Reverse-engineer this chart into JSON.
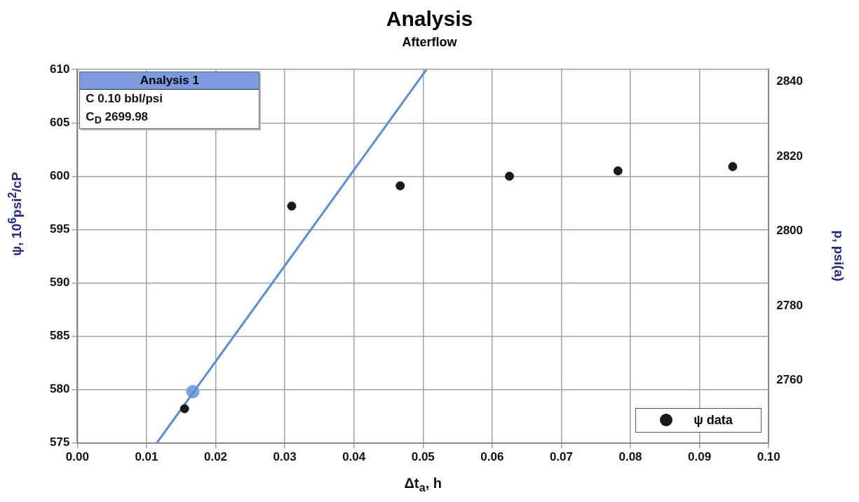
{
  "chart_data": {
    "type": "scatter",
    "title": "Analysis",
    "subtitle": "Afterflow",
    "xlabel": "Δt$_{a}$, h",
    "ylabel": "ψ, 10$^{6}$psi$^{2}$/cP",
    "y2label": "p, psi(a)",
    "annotations": [
      "Analysis 1",
      "C 0.10 bbl/psi",
      "C$_{D}$ 2699.98"
    ],
    "xlim": [
      0,
      0.1
    ],
    "xticks": [
      {
        "value": 0,
        "label": "0.00"
      },
      0.01,
      0.02,
      0.03,
      0.04,
      0.05,
      0.06,
      0.07,
      0.08,
      0.09,
      {
        "value": 0.1,
        "label": "0.10"
      }
    ],
    "ylim": [
      575,
      610
    ],
    "yticks": [
      575,
      580,
      585,
      590,
      595,
      600,
      605,
      610
    ],
    "y2lim": [
      2743.3,
      2843.3
    ],
    "y2ticks": [
      2760,
      2780,
      2800,
      2820,
      2840
    ],
    "grid": true,
    "legend": "bottom right",
    "series": [
      {
        "name": "ψ data",
        "marker": "circle",
        "color": "#1a1a1a",
        "x": [
          0.0155,
          0.031,
          0.0467,
          0.0625,
          0.0782,
          0.0948
        ],
        "values": [
          578.2,
          597.2,
          599.1,
          600.0,
          600.5,
          600.9
        ]
      },
      {
        "type": "line",
        "marker": "none",
        "color": "#5b8bd8",
        "x": [
          0.0115,
          0.0505
        ],
        "values": [
          575,
          610
        ]
      },
      {
        "marker": "circle",
        "color": "#7aa3e0",
        "x": [
          0.0167
        ],
        "values": [
          579.8
        ]
      }
    ]
  }
}
